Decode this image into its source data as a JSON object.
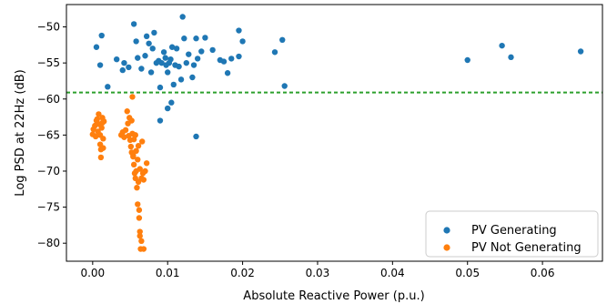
{
  "chart_data": {
    "type": "scatter",
    "xlabel": "Absolute Reactive Power (p.u.)",
    "ylabel": "Log PSD at 22Hz (dB)",
    "xlim": [
      -0.0035,
      0.068
    ],
    "ylim": [
      -82.5,
      -46.9
    ],
    "xticks": [
      0.0,
      0.01,
      0.02,
      0.03,
      0.04,
      0.05,
      0.06
    ],
    "xtick_labels": [
      "0.00",
      "0.01",
      "0.02",
      "0.03",
      "0.04",
      "0.05",
      "0.06"
    ],
    "yticks": [
      -50,
      -55,
      -60,
      -65,
      -70,
      -75,
      -80
    ],
    "ytick_labels": [
      "−50",
      "−55",
      "−60",
      "−65",
      "−70",
      "−75",
      "−80"
    ],
    "grid": false,
    "legend_position": "bottom-right",
    "threshold": {
      "y": -59.1,
      "color": "#2ca02c",
      "style": "dashed"
    },
    "series": [
      {
        "name": "PV Generating",
        "color": "#1f77b4",
        "points": [
          [
            0.0005,
            -52.8
          ],
          [
            0.0012,
            -51.2
          ],
          [
            0.001,
            -55.3
          ],
          [
            0.002,
            -58.3
          ],
          [
            0.0032,
            -54.5
          ],
          [
            0.004,
            -56.0
          ],
          [
            0.0042,
            -55.0
          ],
          [
            0.0048,
            -55.6
          ],
          [
            0.0055,
            -49.6
          ],
          [
            0.0058,
            -52.0
          ],
          [
            0.006,
            -54.3
          ],
          [
            0.0065,
            -55.8
          ],
          [
            0.007,
            -54.0
          ],
          [
            0.0072,
            -51.3
          ],
          [
            0.0075,
            -52.3
          ],
          [
            0.0078,
            -56.3
          ],
          [
            0.008,
            -53.0
          ],
          [
            0.0082,
            -50.8
          ],
          [
            0.0085,
            -55.0
          ],
          [
            0.0088,
            -54.7
          ],
          [
            0.009,
            -58.4
          ],
          [
            0.0092,
            -55.0
          ],
          [
            0.0095,
            -53.5
          ],
          [
            0.0097,
            -54.3
          ],
          [
            0.0098,
            -55.3
          ],
          [
            0.01,
            -56.3
          ],
          [
            0.0102,
            -55.0
          ],
          [
            0.0104,
            -54.5
          ],
          [
            0.0106,
            -52.8
          ],
          [
            0.0108,
            -58.0
          ],
          [
            0.011,
            -55.3
          ],
          [
            0.0112,
            -53.0
          ],
          [
            0.0115,
            -55.5
          ],
          [
            0.0118,
            -57.3
          ],
          [
            0.012,
            -48.6
          ],
          [
            0.0122,
            -51.6
          ],
          [
            0.0125,
            -55.0
          ],
          [
            0.0128,
            -53.8
          ],
          [
            0.0133,
            -57.0
          ],
          [
            0.0135,
            -55.3
          ],
          [
            0.0138,
            -51.6
          ],
          [
            0.014,
            -54.4
          ],
          [
            0.0145,
            -53.4
          ],
          [
            0.015,
            -51.5
          ],
          [
            0.016,
            -53.2
          ],
          [
            0.017,
            -54.6
          ],
          [
            0.0175,
            -54.8
          ],
          [
            0.018,
            -56.4
          ],
          [
            0.0185,
            -54.4
          ],
          [
            0.0195,
            -50.5
          ],
          [
            0.02,
            -52.0
          ],
          [
            0.0195,
            -54.1
          ],
          [
            0.0243,
            -53.5
          ],
          [
            0.0253,
            -51.8
          ],
          [
            0.0256,
            -58.2
          ],
          [
            0.009,
            -63.0
          ],
          [
            0.01,
            -61.3
          ],
          [
            0.0105,
            -60.5
          ],
          [
            0.0138,
            -65.2
          ],
          [
            0.05,
            -54.6
          ],
          [
            0.0546,
            -52.6
          ],
          [
            0.0558,
            -54.2
          ],
          [
            0.0651,
            -53.4
          ]
        ]
      },
      {
        "name": "PV Not Generating",
        "color": "#ff7f0e",
        "points": [
          [
            0.0,
            -64.9
          ],
          [
            0.0001,
            -64.2
          ],
          [
            0.0003,
            -63.7
          ],
          [
            0.0004,
            -65.2
          ],
          [
            0.0005,
            -63.0
          ],
          [
            0.0006,
            -62.8
          ],
          [
            0.0007,
            -64.5
          ],
          [
            0.0008,
            -62.1
          ],
          [
            0.0009,
            -63.5
          ],
          [
            0.001,
            -65.0
          ],
          [
            0.001,
            -66.3
          ],
          [
            0.0011,
            -67.0
          ],
          [
            0.0011,
            -68.1
          ],
          [
            0.0012,
            -64.0
          ],
          [
            0.0013,
            -62.6
          ],
          [
            0.0013,
            -63.3
          ],
          [
            0.0014,
            -65.5
          ],
          [
            0.0014,
            -66.8
          ],
          [
            0.0015,
            -63.1
          ],
          [
            0.0038,
            -65.0
          ],
          [
            0.004,
            -64.6
          ],
          [
            0.0042,
            -65.3
          ],
          [
            0.0044,
            -64.3
          ],
          [
            0.0046,
            -61.7
          ],
          [
            0.0047,
            -63.4
          ],
          [
            0.0048,
            -65.1
          ],
          [
            0.0049,
            -62.6
          ],
          [
            0.005,
            -65.7
          ],
          [
            0.0051,
            -66.6
          ],
          [
            0.0052,
            -63.0
          ],
          [
            0.0052,
            -67.4
          ],
          [
            0.0053,
            -59.7
          ],
          [
            0.0053,
            -64.8
          ],
          [
            0.0054,
            -68.0
          ],
          [
            0.0055,
            -69.1
          ],
          [
            0.0055,
            -65.6
          ],
          [
            0.0056,
            -70.3
          ],
          [
            0.0057,
            -65.0
          ],
          [
            0.0057,
            -71.0
          ],
          [
            0.0058,
            -67.2
          ],
          [
            0.0058,
            -70.0
          ],
          [
            0.0059,
            -72.3
          ],
          [
            0.006,
            -68.4
          ],
          [
            0.006,
            -74.6
          ],
          [
            0.0061,
            -66.5
          ],
          [
            0.0061,
            -71.5
          ],
          [
            0.0062,
            -75.4
          ],
          [
            0.0062,
            -76.5
          ],
          [
            0.0063,
            -78.4
          ],
          [
            0.0063,
            -79.0
          ],
          [
            0.0063,
            -69.7
          ],
          [
            0.0064,
            -80.8
          ],
          [
            0.0065,
            -79.7
          ],
          [
            0.0065,
            -71.0
          ],
          [
            0.0066,
            -65.9
          ],
          [
            0.0067,
            -70.3
          ],
          [
            0.0068,
            -71.2
          ],
          [
            0.0068,
            -80.8
          ],
          [
            0.007,
            -70.0
          ],
          [
            0.0072,
            -68.9
          ],
          [
            0.0054,
            -67.8
          ]
        ]
      }
    ]
  }
}
